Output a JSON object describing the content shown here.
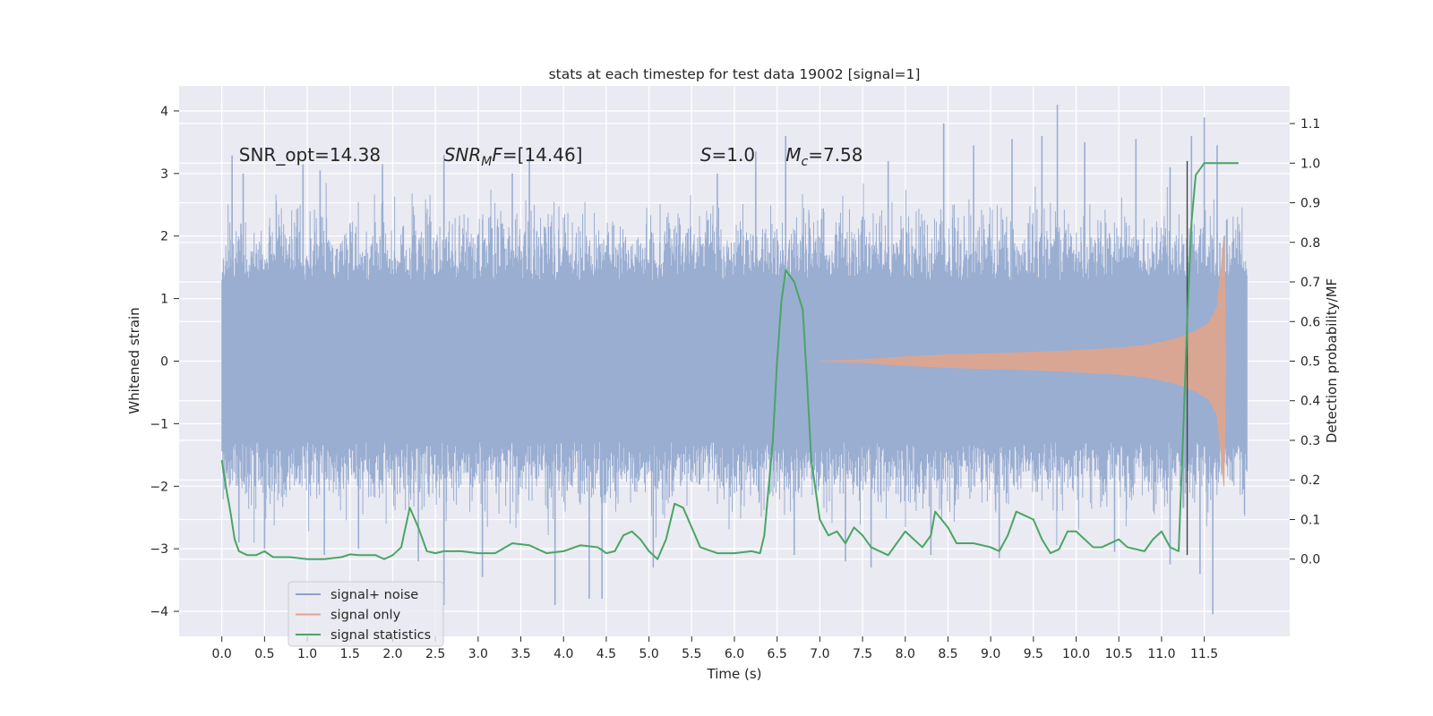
{
  "chart_data": {
    "type": "line",
    "title": "stats at each timestep for test data 19002 [signal=1]",
    "xlabel": "Time (s)",
    "ylabel": "Whitened strain",
    "y2label": "Detection probability/MF",
    "xlim": [
      -0.5,
      12.5
    ],
    "ylim": [
      -4.4,
      4.4
    ],
    "y2lim": [
      -0.195,
      1.195
    ],
    "grid": true,
    "x_ticks": [
      "0.0",
      "0.5",
      "1.0",
      "1.5",
      "2.0",
      "2.5",
      "3.0",
      "3.5",
      "4.0",
      "4.5",
      "5.0",
      "5.5",
      "6.0",
      "6.5",
      "7.0",
      "7.5",
      "8.0",
      "8.5",
      "9.0",
      "9.5",
      "10.0",
      "10.5",
      "11.0",
      "11.5"
    ],
    "y_ticks": [
      "−4",
      "−3",
      "−2",
      "−1",
      "0",
      "1",
      "2",
      "3",
      "4"
    ],
    "y2_ticks": [
      "0.0",
      "0.1",
      "0.2",
      "0.3",
      "0.4",
      "0.5",
      "0.6",
      "0.7",
      "0.8",
      "0.9",
      "1.0",
      "1.1"
    ],
    "annotations": [
      {
        "prefix": "SNR_opt=14.38",
        "var": "",
        "sub": "",
        "suffix": "",
        "x": 0.2,
        "y": 3.3
      },
      {
        "prefix": "",
        "var": "SNR",
        "sub": "M",
        "varb": "F",
        "suffix": "=[14.46]",
        "x": 2.6,
        "y": 3.3
      },
      {
        "prefix": "",
        "var": "S",
        "sub": "",
        "suffix": "=1.0",
        "x": 5.6,
        "y": 3.3
      },
      {
        "prefix": "",
        "var": "M",
        "sub": "c",
        "suffix": "=7.58",
        "x": 6.6,
        "y": 3.3
      }
    ],
    "legend": {
      "placement": "lower-left",
      "entries": [
        {
          "label": "signal+ noise",
          "color": "#8da0cb"
        },
        {
          "label": "signal only",
          "color": "#e5a18a"
        },
        {
          "label": "signal statistics",
          "color": "#4aa564"
        }
      ]
    },
    "noise_series": {
      "name": "signal+ noise",
      "color": "#9aaed2",
      "x_range": [
        0.0,
        12.0
      ],
      "core_band": [
        -1.3,
        1.3
      ],
      "spike_band": [
        -2.1,
        2.1
      ],
      "outlier_peaks": [
        {
          "x": 0.12,
          "y": 3.29
        },
        {
          "x": 0.25,
          "y": 3.0
        },
        {
          "x": 0.95,
          "y": 3.15
        },
        {
          "x": 1.15,
          "y": 3.05
        },
        {
          "x": 1.88,
          "y": 3.15
        },
        {
          "x": 2.6,
          "y": 3.3
        },
        {
          "x": 3.4,
          "y": 3.0
        },
        {
          "x": 3.6,
          "y": 3.3
        },
        {
          "x": 5.8,
          "y": 3.0
        },
        {
          "x": 6.25,
          "y": 3.35
        },
        {
          "x": 6.6,
          "y": 3.6
        },
        {
          "x": 7.8,
          "y": 3.2
        },
        {
          "x": 8.45,
          "y": 3.8
        },
        {
          "x": 8.8,
          "y": 3.45
        },
        {
          "x": 9.25,
          "y": 3.55
        },
        {
          "x": 9.6,
          "y": 3.6
        },
        {
          "x": 9.78,
          "y": 4.1
        },
        {
          "x": 10.1,
          "y": 3.5
        },
        {
          "x": 10.7,
          "y": 3.55
        },
        {
          "x": 11.1,
          "y": 3.1
        },
        {
          "x": 11.35,
          "y": 3.6
        },
        {
          "x": 11.5,
          "y": 3.9
        },
        {
          "x": 11.65,
          "y": 3.45
        }
      ],
      "outlier_troughs": [
        {
          "x": 0.2,
          "y": -2.9
        },
        {
          "x": 0.5,
          "y": -3.0
        },
        {
          "x": 1.2,
          "y": -3.1
        },
        {
          "x": 1.6,
          "y": -3.0
        },
        {
          "x": 2.6,
          "y": -3.9
        },
        {
          "x": 2.3,
          "y": -3.2
        },
        {
          "x": 3.05,
          "y": -3.45
        },
        {
          "x": 3.9,
          "y": -3.9
        },
        {
          "x": 4.3,
          "y": -3.8
        },
        {
          "x": 4.45,
          "y": -3.8
        },
        {
          "x": 5.05,
          "y": -3.3
        },
        {
          "x": 6.7,
          "y": -3.1
        },
        {
          "x": 7.3,
          "y": -3.2
        },
        {
          "x": 7.6,
          "y": -3.3
        },
        {
          "x": 8.3,
          "y": -3.1
        },
        {
          "x": 9.1,
          "y": -3.15
        },
        {
          "x": 10.45,
          "y": -3.05
        },
        {
          "x": 11.1,
          "y": -3.25
        },
        {
          "x": 11.45,
          "y": -3.4
        },
        {
          "x": 11.6,
          "y": -4.05
        }
      ]
    },
    "signal_series": {
      "name": "signal only",
      "color": "#e0a58c",
      "envelope": [
        [
          7.0,
          0.0
        ],
        [
          7.5,
          0.02
        ],
        [
          8.0,
          0.07
        ],
        [
          8.5,
          0.1
        ],
        [
          9.0,
          0.12
        ],
        [
          9.5,
          0.14
        ],
        [
          10.0,
          0.17
        ],
        [
          10.5,
          0.21
        ],
        [
          10.8,
          0.25
        ],
        [
          11.0,
          0.3
        ],
        [
          11.2,
          0.37
        ],
        [
          11.4,
          0.48
        ],
        [
          11.55,
          0.6
        ],
        [
          11.65,
          0.85
        ],
        [
          11.7,
          1.5
        ],
        [
          11.73,
          2.0
        ],
        [
          11.75,
          0.0
        ]
      ]
    },
    "statistics_series": {
      "name": "signal statistics",
      "color": "#4aa564",
      "axis": "y2",
      "points": [
        [
          0.0,
          0.25
        ],
        [
          0.05,
          0.18
        ],
        [
          0.1,
          0.12
        ],
        [
          0.15,
          0.05
        ],
        [
          0.2,
          0.02
        ],
        [
          0.3,
          0.01
        ],
        [
          0.4,
          0.01
        ],
        [
          0.5,
          0.02
        ],
        [
          0.6,
          0.005
        ],
        [
          0.8,
          0.005
        ],
        [
          1.0,
          0.0
        ],
        [
          1.2,
          0.0
        ],
        [
          1.4,
          0.005
        ],
        [
          1.5,
          0.012
        ],
        [
          1.6,
          0.01
        ],
        [
          1.8,
          0.01
        ],
        [
          1.9,
          0.0
        ],
        [
          2.0,
          0.01
        ],
        [
          2.1,
          0.03
        ],
        [
          2.2,
          0.13
        ],
        [
          2.3,
          0.08
        ],
        [
          2.4,
          0.02
        ],
        [
          2.5,
          0.015
        ],
        [
          2.6,
          0.02
        ],
        [
          2.8,
          0.02
        ],
        [
          3.0,
          0.015
        ],
        [
          3.2,
          0.015
        ],
        [
          3.4,
          0.04
        ],
        [
          3.6,
          0.035
        ],
        [
          3.8,
          0.015
        ],
        [
          4.0,
          0.02
        ],
        [
          4.2,
          0.035
        ],
        [
          4.4,
          0.03
        ],
        [
          4.5,
          0.015
        ],
        [
          4.6,
          0.02
        ],
        [
          4.7,
          0.06
        ],
        [
          4.8,
          0.07
        ],
        [
          4.9,
          0.05
        ],
        [
          5.0,
          0.02
        ],
        [
          5.1,
          0.0
        ],
        [
          5.2,
          0.05
        ],
        [
          5.3,
          0.14
        ],
        [
          5.4,
          0.13
        ],
        [
          5.5,
          0.08
        ],
        [
          5.6,
          0.03
        ],
        [
          5.8,
          0.015
        ],
        [
          6.0,
          0.015
        ],
        [
          6.2,
          0.02
        ],
        [
          6.3,
          0.015
        ],
        [
          6.35,
          0.06
        ],
        [
          6.45,
          0.3
        ],
        [
          6.5,
          0.5
        ],
        [
          6.55,
          0.65
        ],
        [
          6.6,
          0.73
        ],
        [
          6.7,
          0.7
        ],
        [
          6.8,
          0.63
        ],
        [
          6.85,
          0.45
        ],
        [
          6.9,
          0.25
        ],
        [
          7.0,
          0.1
        ],
        [
          7.1,
          0.06
        ],
        [
          7.2,
          0.07
        ],
        [
          7.3,
          0.04
        ],
        [
          7.4,
          0.08
        ],
        [
          7.5,
          0.06
        ],
        [
          7.6,
          0.03
        ],
        [
          7.8,
          0.01
        ],
        [
          8.0,
          0.07
        ],
        [
          8.1,
          0.05
        ],
        [
          8.2,
          0.03
        ],
        [
          8.3,
          0.06
        ],
        [
          8.35,
          0.12
        ],
        [
          8.5,
          0.08
        ],
        [
          8.6,
          0.04
        ],
        [
          8.8,
          0.04
        ],
        [
          9.0,
          0.03
        ],
        [
          9.1,
          0.02
        ],
        [
          9.2,
          0.06
        ],
        [
          9.3,
          0.12
        ],
        [
          9.4,
          0.11
        ],
        [
          9.5,
          0.1
        ],
        [
          9.6,
          0.05
        ],
        [
          9.7,
          0.015
        ],
        [
          9.8,
          0.025
        ],
        [
          9.9,
          0.07
        ],
        [
          10.0,
          0.07
        ],
        [
          10.1,
          0.05
        ],
        [
          10.2,
          0.03
        ],
        [
          10.3,
          0.03
        ],
        [
          10.5,
          0.05
        ],
        [
          10.6,
          0.03
        ],
        [
          10.8,
          0.02
        ],
        [
          10.9,
          0.05
        ],
        [
          11.0,
          0.07
        ],
        [
          11.1,
          0.03
        ],
        [
          11.2,
          0.02
        ],
        [
          11.25,
          0.3
        ],
        [
          11.3,
          0.6
        ],
        [
          11.35,
          0.85
        ],
        [
          11.4,
          0.97
        ],
        [
          11.5,
          1.0
        ],
        [
          11.7,
          1.0
        ],
        [
          11.8,
          1.0
        ],
        [
          11.9,
          1.0
        ]
      ]
    },
    "vertical_marker": {
      "x": 11.3,
      "y_from": -3.1,
      "y_to": 3.2,
      "color": "#444444"
    }
  }
}
